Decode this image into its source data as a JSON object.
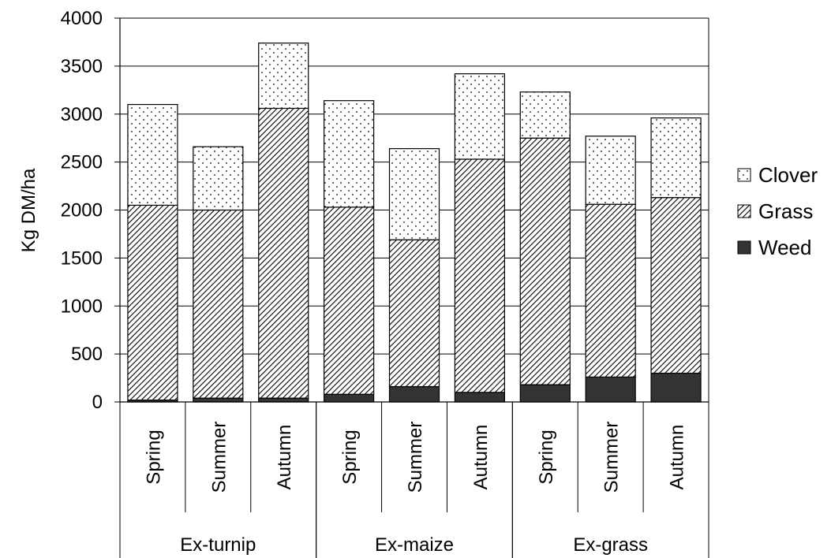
{
  "chart_data": {
    "type": "bar",
    "stacked": true,
    "ylabel": "Kg DM/ha",
    "xlabel": "",
    "ylim": [
      0,
      4000
    ],
    "yticks": [
      0,
      500,
      1000,
      1500,
      2000,
      2500,
      3000,
      3500,
      4000
    ],
    "grid": true,
    "legend_position": "right",
    "groups": [
      {
        "label": "Ex-turnip",
        "categories": [
          "Spring",
          "Summer",
          "Autumn"
        ]
      },
      {
        "label": "Ex-maize",
        "categories": [
          "Spring",
          "Summer",
          "Autumn"
        ]
      },
      {
        "label": "Ex-grass",
        "categories": [
          "Spring",
          "Summer",
          "Autumn"
        ]
      }
    ],
    "categories": [
      "Spring",
      "Summer",
      "Autumn",
      "Spring",
      "Summer",
      "Autumn",
      "Spring",
      "Summer",
      "Autumn"
    ],
    "series": [
      {
        "name": "Weed",
        "pattern": "solid",
        "color": "#333333",
        "values": [
          20,
          40,
          40,
          80,
          160,
          100,
          180,
          260,
          300
        ]
      },
      {
        "name": "Grass",
        "pattern": "diagonal-hatch",
        "color": "#000000",
        "values": [
          2030,
          1960,
          3020,
          1950,
          1530,
          2430,
          2570,
          1800,
          1830
        ]
      },
      {
        "name": "Clover",
        "pattern": "dots",
        "color": "#000000",
        "values": [
          1050,
          660,
          680,
          1110,
          950,
          890,
          480,
          710,
          830
        ]
      }
    ],
    "legend_order": [
      "Clover",
      "Grass",
      "Weed"
    ]
  }
}
